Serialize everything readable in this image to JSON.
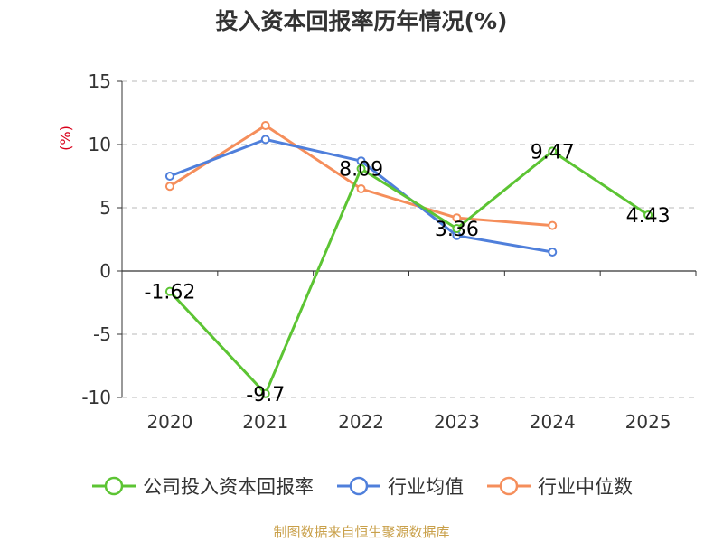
{
  "chart_data": {
    "type": "line",
    "title": "投入资本回报率历年情况(%)",
    "ylabel": "(%)",
    "xlabel": "",
    "categories": [
      "2020",
      "2021",
      "2022",
      "2023",
      "2024",
      "2025"
    ],
    "ylim": [
      -10,
      15
    ],
    "yticks": [
      15,
      10,
      5,
      0,
      -5,
      -10
    ],
    "grid": true,
    "legend_position": "bottom",
    "series": [
      {
        "name": "公司投入资本回报率",
        "color": "#5cc433",
        "values": [
          -1.62,
          -9.7,
          8.09,
          3.36,
          9.47,
          4.43
        ],
        "labels": [
          "-1.62",
          "-9.7",
          "8.09",
          "3.36",
          "9.47",
          "4.43"
        ]
      },
      {
        "name": "行业均值",
        "color": "#4f7fdb",
        "values": [
          7.5,
          10.4,
          8.7,
          2.8,
          1.5,
          null
        ]
      },
      {
        "name": "行业中位数",
        "color": "#f58e5b",
        "values": [
          6.7,
          11.5,
          6.5,
          4.2,
          3.6,
          null
        ]
      }
    ]
  },
  "source_note": "制图数据来自恒生聚源数据库"
}
